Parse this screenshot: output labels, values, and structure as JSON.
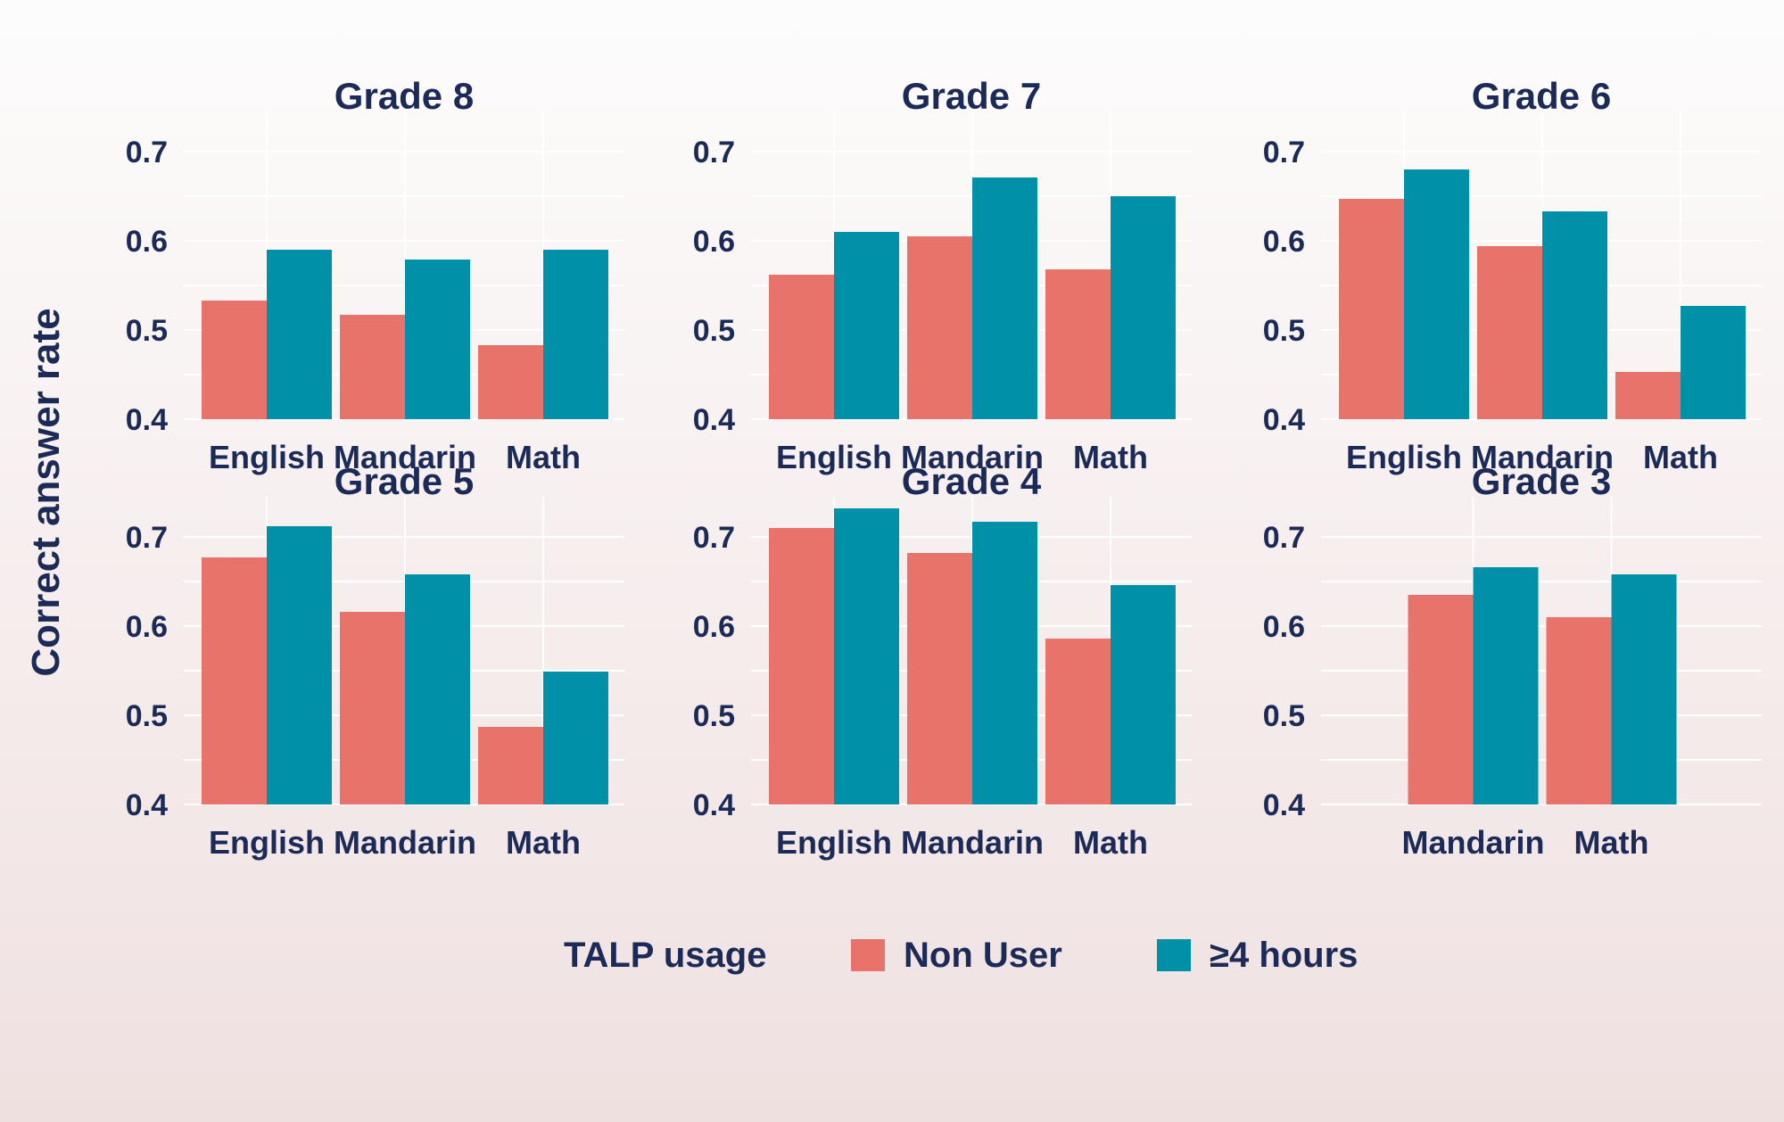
{
  "colors": {
    "non_user": "#e8736a",
    "user": "#0091a8",
    "text": "#1b2a57",
    "grid": "#ffffff"
  },
  "chart_data": {
    "type": "bar",
    "ylabel": "Correct answer rate",
    "ylim": [
      0.4,
      0.7
    ],
    "yticks": [
      "0.4",
      "0.5",
      "0.6",
      "0.7"
    ],
    "legend": {
      "title": "TALP usage",
      "position": "bottom",
      "entries": [
        "Non User",
        "≥4 hours"
      ]
    },
    "panels": [
      {
        "title": "Grade 8",
        "categories": [
          "English",
          "Mandarin",
          "Math"
        ],
        "series": [
          {
            "name": "Non User",
            "values": [
              0.533,
              0.517,
              0.483
            ]
          },
          {
            "name": "≥4 hours",
            "values": [
              0.59,
              0.579,
              0.59
            ]
          }
        ]
      },
      {
        "title": "Grade 7",
        "categories": [
          "English",
          "Mandarin",
          "Math"
        ],
        "series": [
          {
            "name": "Non User",
            "values": [
              0.562,
              0.605,
              0.568
            ]
          },
          {
            "name": "≥4 hours",
            "values": [
              0.61,
              0.671,
              0.65
            ]
          }
        ]
      },
      {
        "title": "Grade 6",
        "categories": [
          "English",
          "Mandarin",
          "Math"
        ],
        "series": [
          {
            "name": "Non User",
            "values": [
              0.647,
              0.594,
              0.453
            ]
          },
          {
            "name": "≥4 hours",
            "values": [
              0.68,
              0.633,
              0.527
            ]
          }
        ]
      },
      {
        "title": "Grade 5",
        "categories": [
          "English",
          "Mandarin",
          "Math"
        ],
        "series": [
          {
            "name": "Non User",
            "values": [
              0.677,
              0.616,
              0.487
            ]
          },
          {
            "name": "≥4 hours",
            "values": [
              0.712,
              0.658,
              0.549
            ]
          }
        ]
      },
      {
        "title": "Grade 4",
        "categories": [
          "English",
          "Mandarin",
          "Math"
        ],
        "series": [
          {
            "name": "Non User",
            "values": [
              0.71,
              0.682,
              0.586
            ]
          },
          {
            "name": "≥4 hours",
            "values": [
              0.732,
              0.717,
              0.646
            ]
          }
        ]
      },
      {
        "title": "Grade 3",
        "categories": [
          "Mandarin",
          "Math"
        ],
        "series": [
          {
            "name": "Non User",
            "values": [
              0.635,
              0.61
            ]
          },
          {
            "name": "≥4 hours",
            "values": [
              0.666,
              0.658
            ]
          }
        ]
      }
    ]
  }
}
